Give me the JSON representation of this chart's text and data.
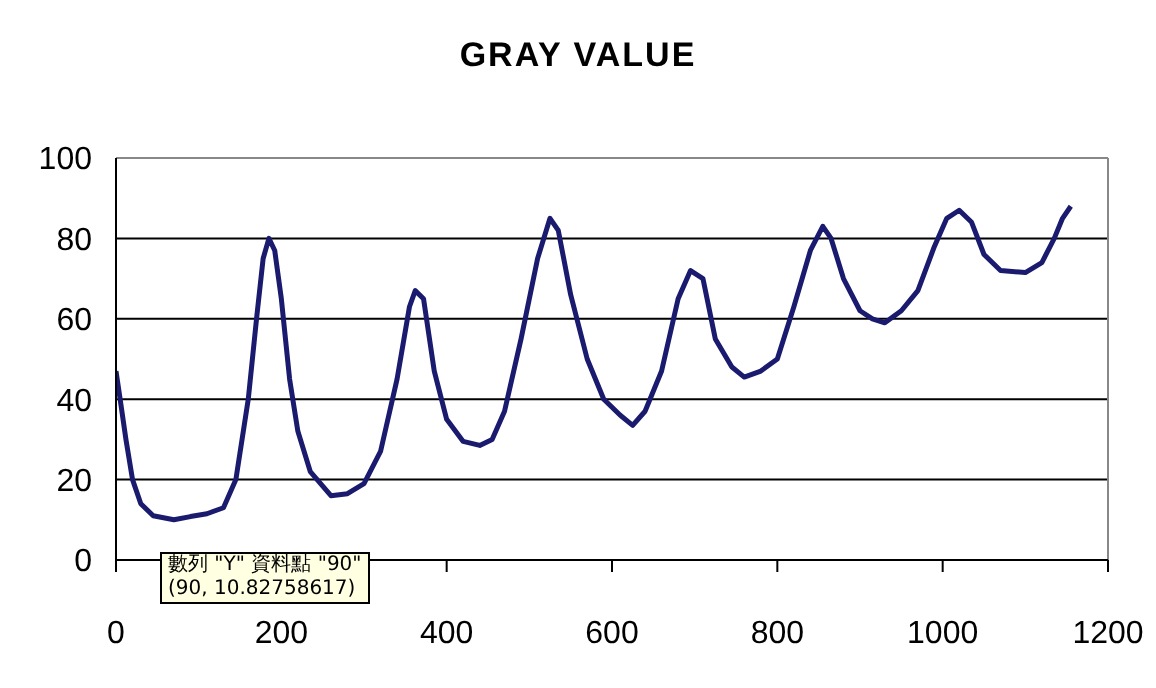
{
  "chart_data": {
    "type": "line",
    "title": "GRAY VALUE",
    "x": [
      0,
      5,
      12,
      20,
      30,
      45,
      70,
      90,
      110,
      130,
      145,
      160,
      170,
      178,
      185,
      192,
      200,
      210,
      220,
      235,
      260,
      280,
      300,
      320,
      340,
      355,
      362,
      372,
      385,
      400,
      420,
      440,
      455,
      470,
      490,
      510,
      525,
      535,
      550,
      570,
      590,
      610,
      625,
      640,
      660,
      680,
      695,
      710,
      725,
      745,
      760,
      780,
      800,
      820,
      840,
      855,
      865,
      880,
      900,
      915,
      930,
      950,
      970,
      990,
      1005,
      1020,
      1035,
      1050,
      1070,
      1100,
      1120,
      1135,
      1145,
      1155
    ],
    "series": [
      {
        "color": "#1a1a6e",
        "values": [
          47,
          40,
          30,
          20,
          14,
          11,
          10,
          10.8,
          11.5,
          13,
          20,
          40,
          60,
          75,
          80,
          77,
          65,
          45,
          32,
          22,
          16,
          16.5,
          19,
          27,
          45,
          63,
          67,
          65,
          47,
          35,
          29.5,
          28.5,
          30,
          37,
          55,
          75,
          85,
          82,
          66,
          50,
          40,
          36,
          33.5,
          37,
          47,
          65,
          72,
          70,
          55,
          48,
          45.5,
          47,
          50,
          63,
          77,
          83,
          80,
          70,
          62,
          60,
          59,
          62,
          67,
          78,
          85,
          87,
          84,
          76,
          72,
          71.5,
          74,
          80,
          85,
          88
        ]
      }
    ],
    "xlim": [
      0,
      1200
    ],
    "xticks": [
      0,
      200,
      400,
      600,
      800,
      1000,
      1200
    ],
    "ylim": [
      0,
      100
    ],
    "yticks": [
      0,
      20,
      40,
      60,
      80,
      100
    ],
    "grid": "y",
    "marker": "none",
    "line_style": "solid",
    "annotations": [
      "數列 \"Y\" 資料點 \"90\"",
      "(90, 10.82758617)"
    ]
  }
}
